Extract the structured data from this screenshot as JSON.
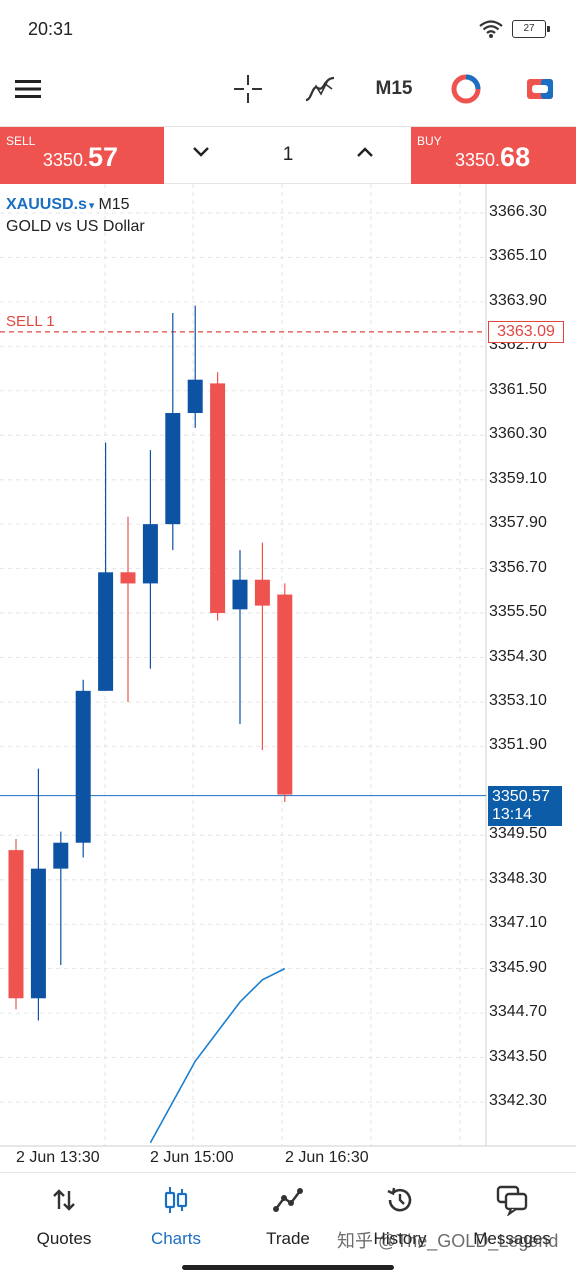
{
  "status_bar": {
    "time": "20:31",
    "battery": "27"
  },
  "toolbar": {
    "timeframe": "M15"
  },
  "trade": {
    "sell_label": "SELL",
    "sell_price_main": "3350.",
    "sell_price_big": "57",
    "buy_label": "BUY",
    "buy_price_main": "3350.",
    "buy_price_big": "68",
    "volume": "1"
  },
  "symbol": {
    "name": "XAUUSD.s",
    "caret": "▾",
    "timeframe": "M15",
    "description": "GOLD vs US Dollar"
  },
  "chart_data": {
    "type": "candlestick",
    "symbol": "XAUUSD.s",
    "timeframe": "M15",
    "y_ticks": [
      "3366.30",
      "3365.10",
      "3363.90",
      "3362.70",
      "3361.50",
      "3360.30",
      "3359.10",
      "3357.90",
      "3356.70",
      "3355.50",
      "3354.30",
      "3353.10",
      "3351.90",
      "3350.57",
      "3349.50",
      "3348.30",
      "3347.10",
      "3345.90",
      "3344.70",
      "3343.50",
      "3342.30"
    ],
    "x_ticks": [
      "2 Jun 13:30",
      "2 Jun 15:00",
      "2 Jun 16:30"
    ],
    "candles": [
      {
        "dir": "bear",
        "open": 3349.1,
        "high": 3349.4,
        "low": 3344.8,
        "close": 3345.1
      },
      {
        "dir": "bull",
        "open": 3345.1,
        "high": 3351.3,
        "low": 3344.5,
        "close": 3348.6
      },
      {
        "dir": "bull",
        "open": 3348.6,
        "high": 3349.6,
        "low": 3346.0,
        "close": 3349.3
      },
      {
        "dir": "bull",
        "open": 3349.3,
        "high": 3353.7,
        "low": 3348.9,
        "close": 3353.4
      },
      {
        "dir": "bull",
        "open": 3353.4,
        "high": 3360.1,
        "low": 3353.4,
        "close": 3356.6
      },
      {
        "dir": "bear",
        "open": 3356.6,
        "high": 3358.1,
        "low": 3353.1,
        "close": 3356.3
      },
      {
        "dir": "bull",
        "open": 3356.3,
        "high": 3359.9,
        "low": 3354.0,
        "close": 3357.9
      },
      {
        "dir": "bull",
        "open": 3357.9,
        "high": 3363.6,
        "low": 3357.2,
        "close": 3360.9
      },
      {
        "dir": "bull",
        "open": 3360.9,
        "high": 3363.8,
        "low": 3360.5,
        "close": 3361.8
      },
      {
        "dir": "bear",
        "open": 3361.7,
        "high": 3362.0,
        "low": 3355.3,
        "close": 3355.5
      },
      {
        "dir": "bull",
        "open": 3355.6,
        "high": 3357.2,
        "low": 3352.5,
        "close": 3356.4
      },
      {
        "dir": "bear",
        "open": 3356.4,
        "high": 3357.4,
        "low": 3351.8,
        "close": 3355.7
      },
      {
        "dir": "bear",
        "open": 3356.0,
        "high": 3356.3,
        "low": 3350.4,
        "close": 3350.6
      }
    ],
    "indicator_line": [
      {
        "i": 6,
        "value": 3341.2
      },
      {
        "i": 8,
        "value": 3343.4
      },
      {
        "i": 9,
        "value": 3344.2
      },
      {
        "i": 10,
        "value": 3345.0
      },
      {
        "i": 11,
        "value": 3345.6
      },
      {
        "i": 12,
        "value": 3345.9
      }
    ],
    "sell_order": {
      "label": "SELL 1",
      "price": "3363.09"
    },
    "current_price": {
      "price": "3350.57",
      "timer": "13:14"
    },
    "colors": {
      "bull": "#0d52a3",
      "bear": "#ef5350",
      "indicator": "#1b7fd0",
      "grid": "#e6e6e6"
    }
  },
  "nav": {
    "items": [
      {
        "label": "Quotes",
        "icon": "arrows-up-down-icon"
      },
      {
        "label": "Charts",
        "icon": "candlestick-icon"
      },
      {
        "label": "Trade",
        "icon": "trend-line-icon"
      },
      {
        "label": "History",
        "icon": "history-icon"
      },
      {
        "label": "Messages",
        "icon": "messages-icon"
      }
    ]
  },
  "watermark": "知乎 @The_GOLD_Legend"
}
